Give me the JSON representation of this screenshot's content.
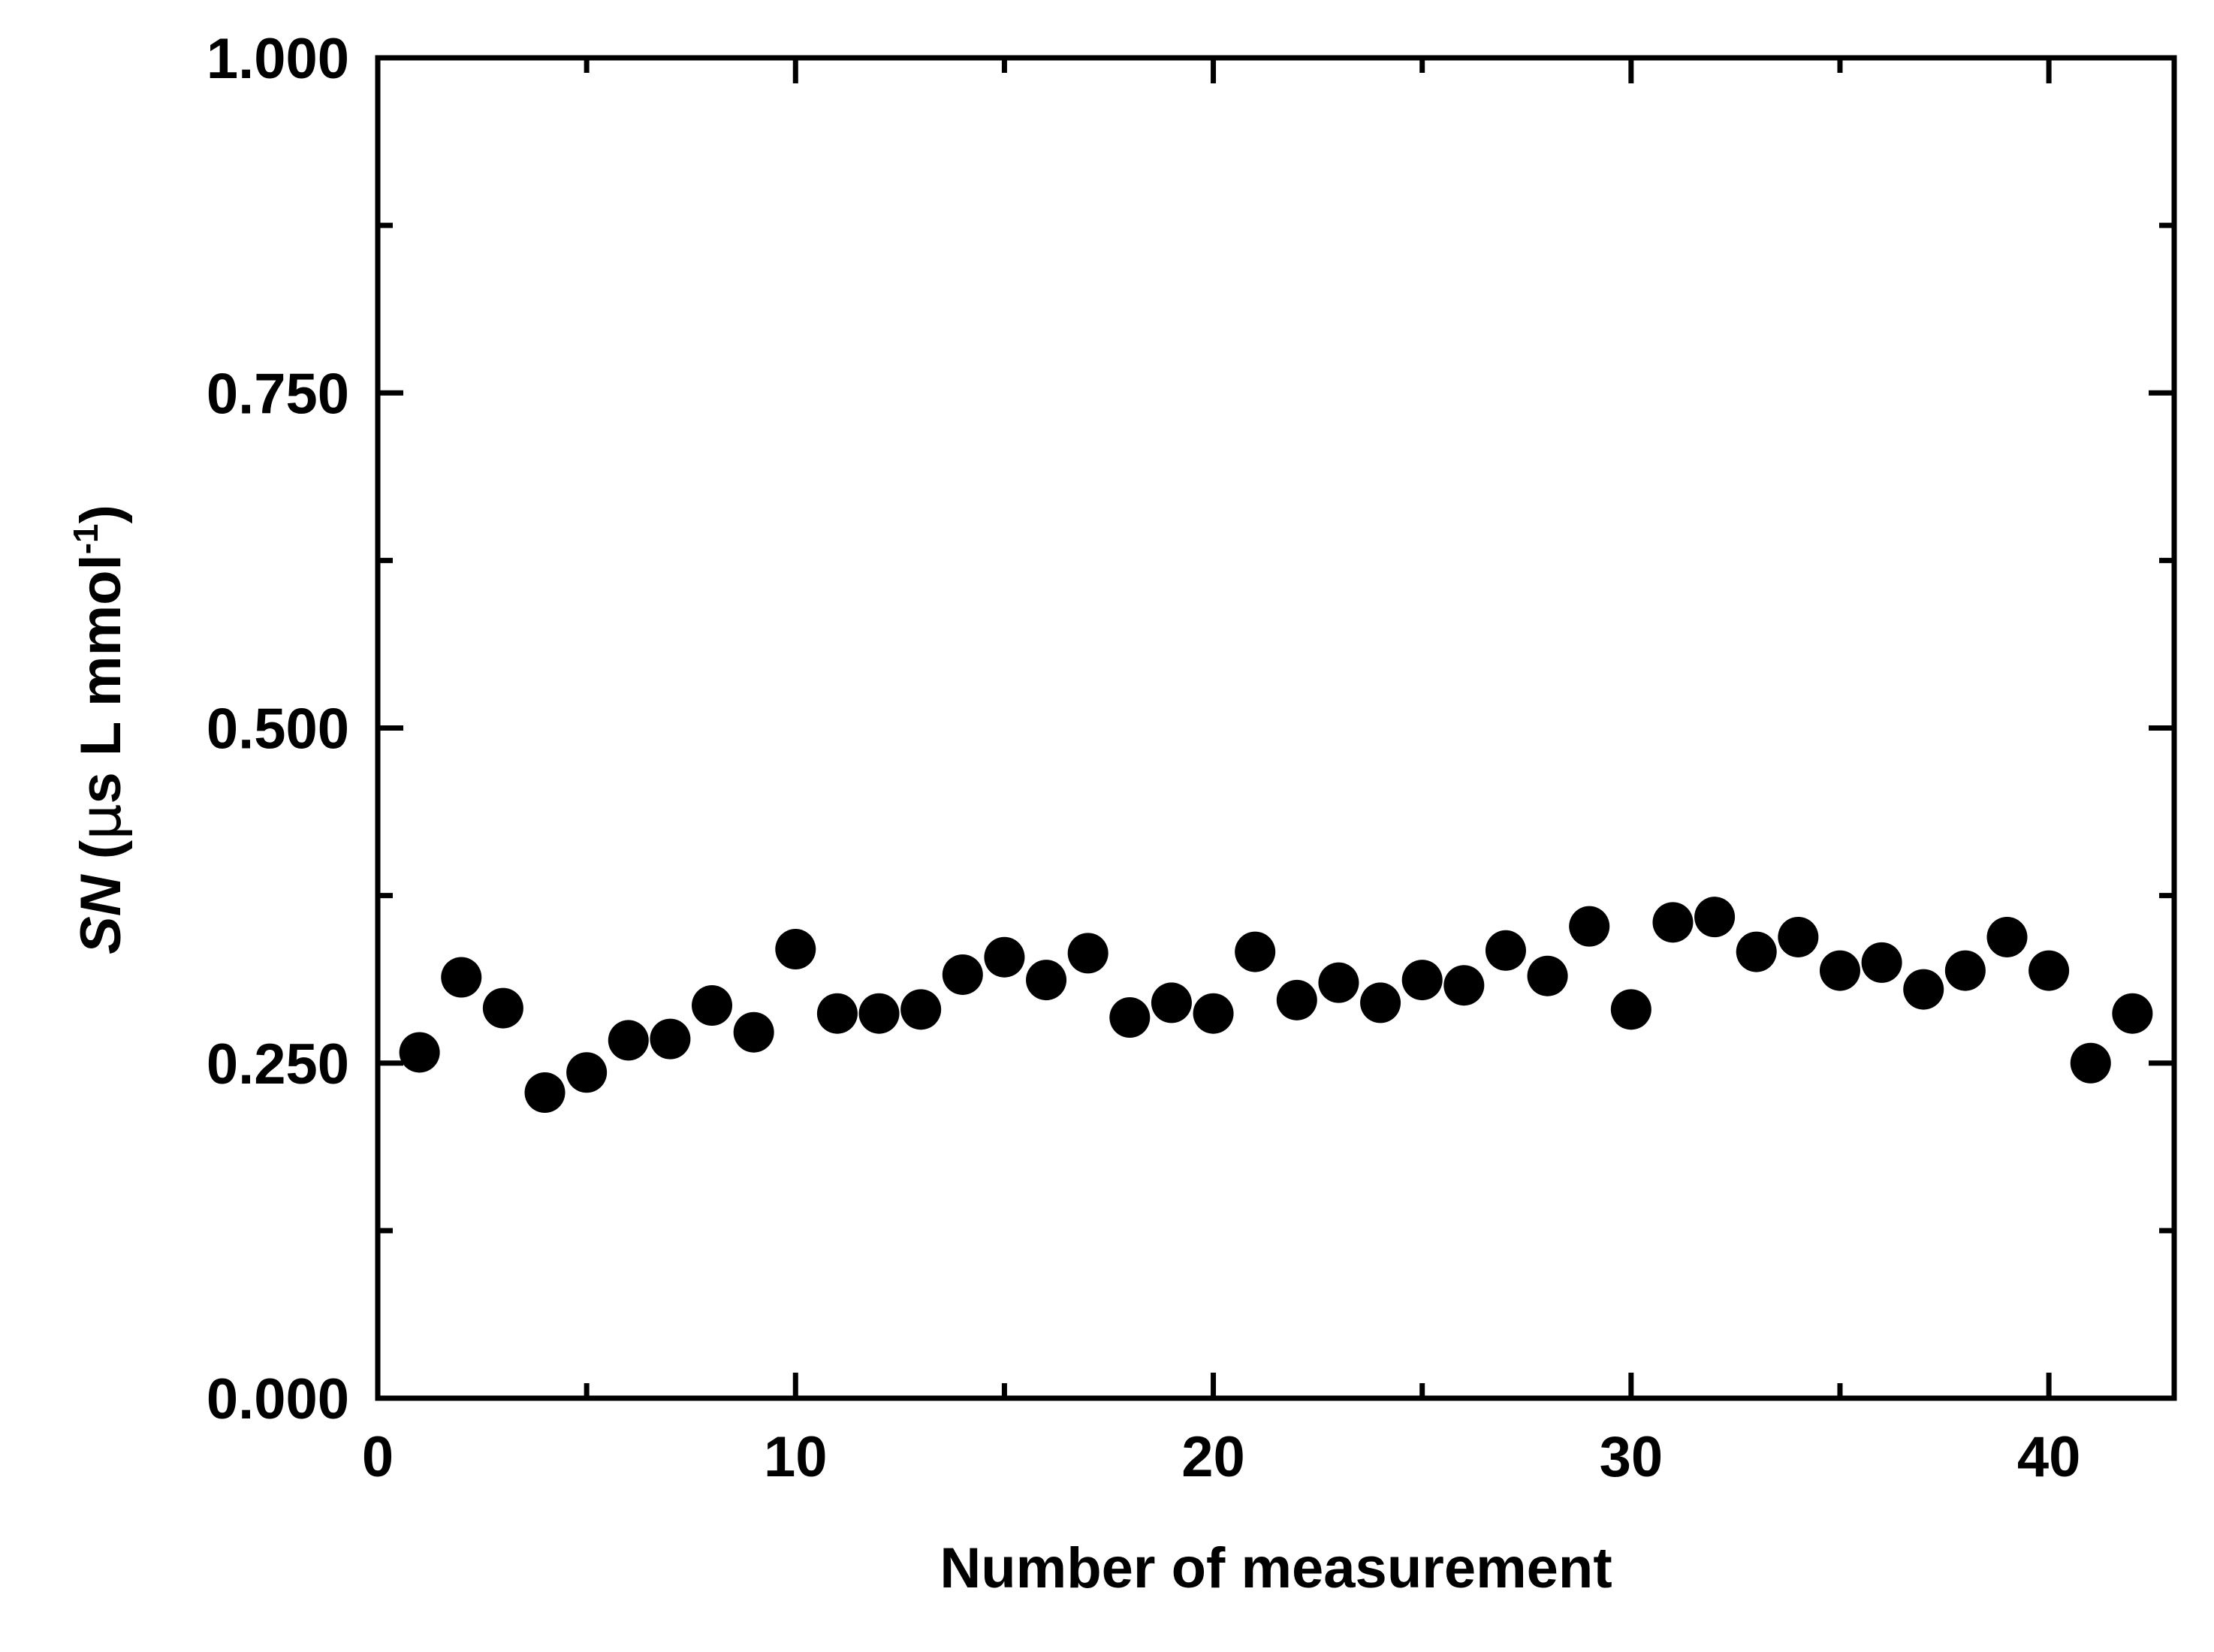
{
  "chart_data": {
    "type": "scatter",
    "title": "",
    "xlabel": "Number of measurement",
    "ylabel": {
      "symbol": "SN",
      "open": " (",
      "mu": "μ",
      "rest": "s L mmol",
      "sup": "-1",
      "close": ")"
    },
    "xlim": [
      0,
      43
    ],
    "ylim": [
      0.0,
      1.0
    ],
    "x_ticks": [
      0,
      10,
      20,
      30,
      40
    ],
    "x_minor_ticks": [
      5,
      15,
      25,
      35
    ],
    "y_ticks": [
      0.0,
      0.25,
      0.5,
      0.75,
      1.0
    ],
    "y_minor_ticks": [
      0.125,
      0.375,
      0.625,
      0.875
    ],
    "x_tick_labels": [
      "0",
      "10",
      "20",
      "30",
      "40"
    ],
    "y_tick_labels": [
      "0.000",
      "0.250",
      "0.500",
      "0.750",
      "1.000"
    ],
    "grid": false,
    "legend": "none",
    "marker_color": "#000000",
    "series": [
      {
        "x": [
          1,
          2,
          3,
          4,
          5,
          6,
          7,
          8,
          9,
          10,
          11,
          12,
          13,
          14,
          15,
          16,
          17,
          18,
          19,
          20,
          21,
          22,
          23,
          24,
          25,
          26,
          27,
          28,
          29,
          30,
          31,
          32,
          33,
          34,
          35,
          36,
          37,
          38,
          39,
          40,
          41,
          42
        ],
        "y": [
          0.258,
          0.314,
          0.291,
          0.228,
          0.243,
          0.267,
          0.268,
          0.293,
          0.273,
          0.335,
          0.287,
          0.287,
          0.29,
          0.316,
          0.329,
          0.312,
          0.332,
          0.284,
          0.295,
          0.287,
          0.333,
          0.297,
          0.31,
          0.295,
          0.312,
          0.308,
          0.334,
          0.315,
          0.352,
          0.29,
          0.355,
          0.359,
          0.333,
          0.344,
          0.319,
          0.325,
          0.305,
          0.319,
          0.344,
          0.319,
          0.25,
          0.287
        ]
      }
    ]
  }
}
